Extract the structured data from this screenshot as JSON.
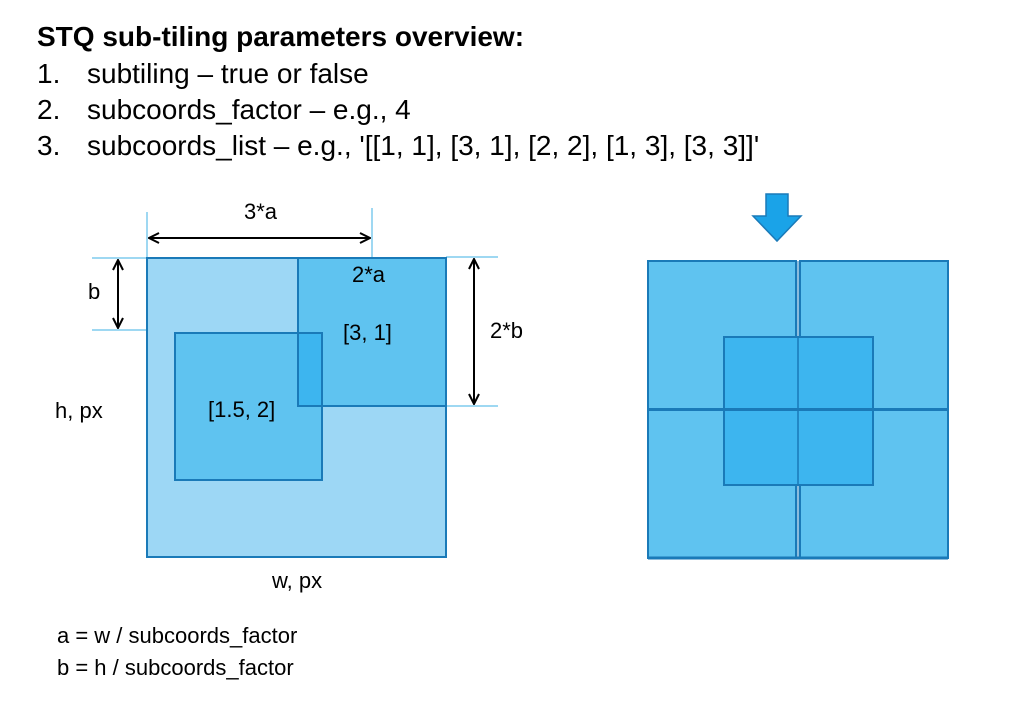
{
  "title": "STQ sub-tiling parameters overview:",
  "items": [
    {
      "num": "1.",
      "text": "subtiling – true or false"
    },
    {
      "num": "2.",
      "text": "subcoords_factor – e.g., 4"
    },
    {
      "num": "3.",
      "text": "subcoords_list – e.g., '[[1, 1], [3, 1], [2, 2], [1, 3], [3, 3]]'"
    }
  ],
  "diagram": {
    "label_3a": "3*a",
    "label_2a": "2*a",
    "label_b": "b",
    "label_2b": "2*b",
    "label_h": "h, px",
    "label_w": "w, px",
    "label_sub_31": "[3, 1]",
    "label_sub_152": "[1.5, 2]"
  },
  "formulas": [
    "a = w / subcoords_factor",
    "b = h / subcoords_factor"
  ],
  "colors": {
    "tile_light": "#9dd7f5",
    "tile_mid": "#5fc3f0",
    "tile_overlap": "#3db5ef",
    "border": "#1a7ab8",
    "guide": "#7fcbee",
    "arrow": "#1aa3e8"
  }
}
